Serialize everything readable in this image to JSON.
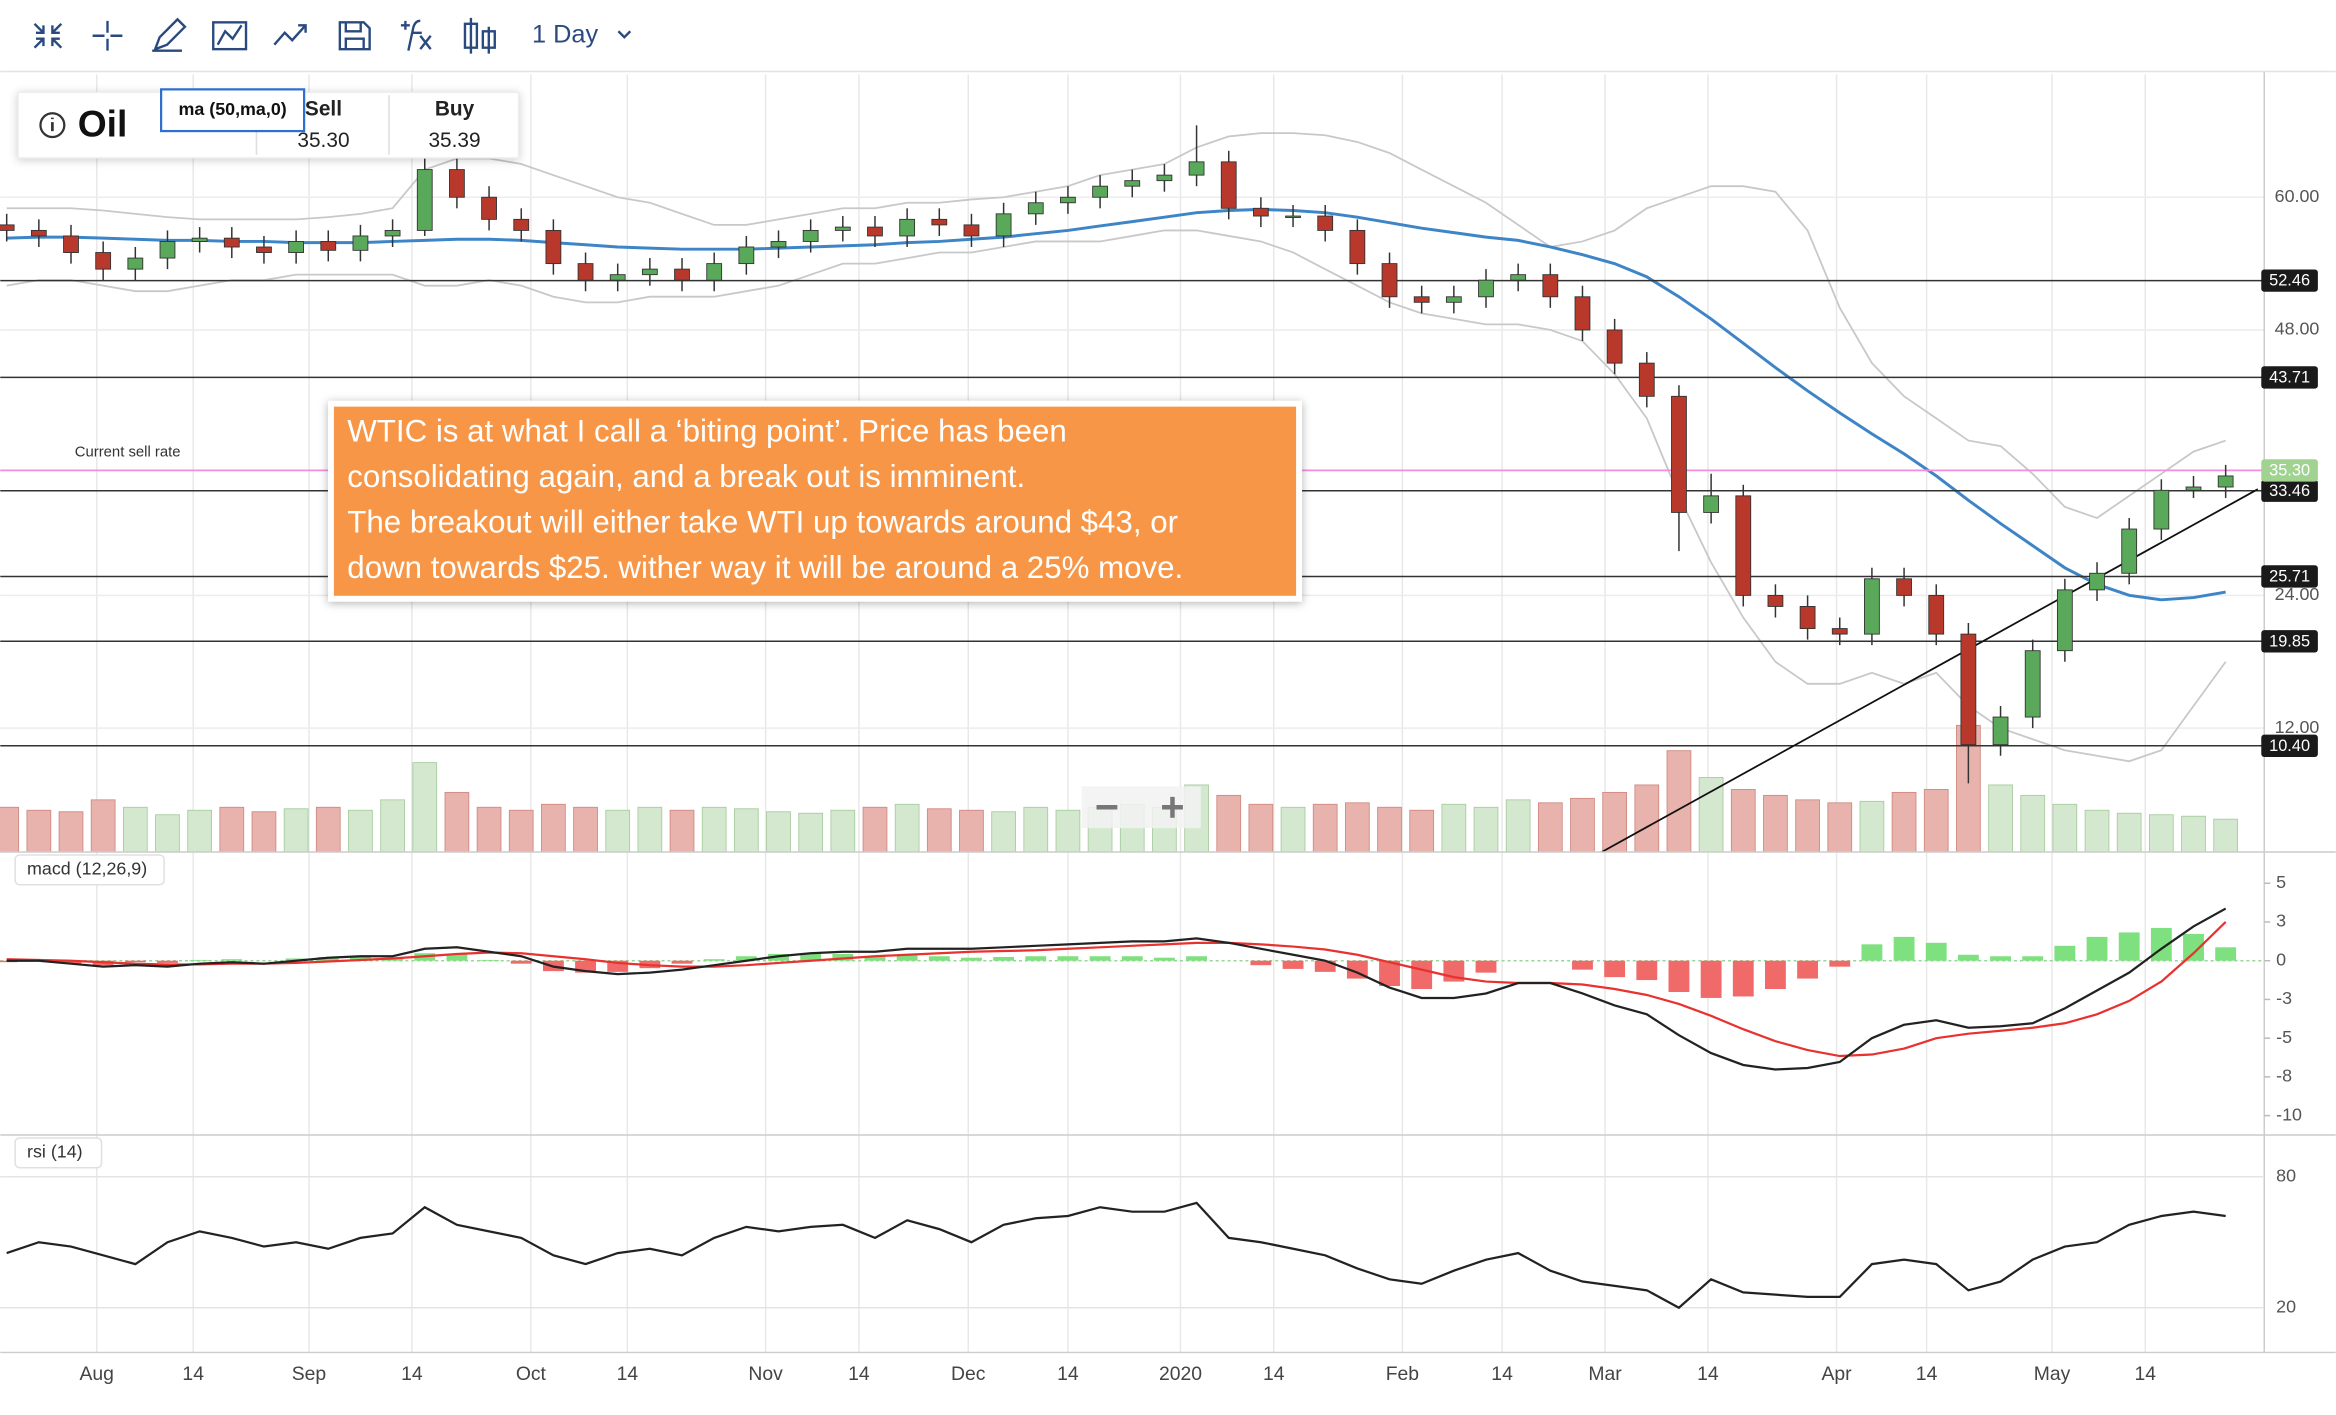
{
  "toolbar": {
    "interval": "1 Day"
  },
  "quote": {
    "name": "Oil",
    "sell_label": "Sell",
    "sell": "35.30",
    "buy_label": "Buy",
    "buy": "35.39"
  },
  "annotation": {
    "lines": [
      "WTIC is at what I call a ‘biting point’. Price has been",
      "consolidating again, and a break out is imminent.",
      "The breakout will either take WTI up towards around $43, or",
      "down towards $25. wither way it will be around a 25% move."
    ]
  },
  "chart_data": {
    "type": "candlestick",
    "xlim": [
      -0.2,
      70.2
    ],
    "xticks": [
      {
        "value": 2.8,
        "label": "Aug"
      },
      {
        "value": 5.8,
        "label": "14"
      },
      {
        "value": 9.4,
        "label": "Sep"
      },
      {
        "value": 12.6,
        "label": "14"
      },
      {
        "value": 16.3,
        "label": "Oct"
      },
      {
        "value": 19.3,
        "label": "14"
      },
      {
        "value": 23.6,
        "label": "Nov"
      },
      {
        "value": 26.5,
        "label": "14"
      },
      {
        "value": 29.9,
        "label": "Dec"
      },
      {
        "value": 33.0,
        "label": "14"
      },
      {
        "value": 36.5,
        "label": "2020"
      },
      {
        "value": 39.4,
        "label": "14"
      },
      {
        "value": 43.4,
        "label": "Feb"
      },
      {
        "value": 46.5,
        "label": "14"
      },
      {
        "value": 49.7,
        "label": "Mar"
      },
      {
        "value": 52.9,
        "label": "14"
      },
      {
        "value": 56.9,
        "label": "Apr"
      },
      {
        "value": 59.7,
        "label": "14"
      },
      {
        "value": 63.6,
        "label": "May"
      },
      {
        "value": 66.5,
        "label": "14"
      }
    ],
    "ylim": [
      0.8,
      71.1
    ],
    "yticks": [
      {
        "value": 60,
        "label": "60.00"
      },
      {
        "value": 48,
        "label": "48.00"
      },
      {
        "value": 24,
        "label": "24.00"
      },
      {
        "value": 12,
        "label": "12.00"
      }
    ],
    "grid": true,
    "up_color": "#5aa85a",
    "down_color": "#b8392b",
    "open": [
      57.5,
      57,
      56.5,
      55,
      53.5,
      54.5,
      56,
      56.3,
      55.5,
      55,
      56,
      55.2,
      56.5,
      57,
      62.5,
      60,
      58,
      57,
      54,
      52.5,
      53,
      53.5,
      52.5,
      54,
      55.5,
      56,
      57,
      57.3,
      56.5,
      58,
      57.5,
      56.5,
      58.5,
      59.5,
      60,
      61,
      61.5,
      62,
      63.2,
      59,
      58.3,
      58.3,
      57,
      54,
      51,
      50.5,
      51,
      52.5,
      53,
      51,
      48,
      45,
      42,
      31.5,
      33,
      24,
      23,
      21,
      20.5,
      25.5,
      24,
      20.5,
      10.5,
      13,
      19,
      24.5,
      26,
      30,
      33.5,
      33.8
    ],
    "high": [
      58.5,
      58,
      57.5,
      56,
      55.5,
      57,
      57.3,
      57.3,
      56.5,
      57,
      57,
      57.5,
      58,
      65,
      63.5,
      61,
      59,
      58,
      55,
      54,
      54.5,
      54.5,
      55,
      56.5,
      57,
      58,
      58.3,
      58.3,
      59,
      59,
      58.5,
      59.5,
      60.5,
      61,
      62,
      62.5,
      63,
      66.5,
      64.2,
      60,
      59.3,
      59.3,
      58,
      55,
      52,
      52,
      53.5,
      54,
      54,
      52,
      49,
      46,
      43,
      35,
      34,
      25,
      24,
      22,
      26.5,
      26.5,
      25,
      21.5,
      14,
      20,
      25.5,
      27,
      31,
      34.5,
      34.8,
      35.8
    ],
    "low": [
      56,
      55.5,
      54,
      52.5,
      52.5,
      53.5,
      55,
      54.5,
      54,
      54,
      54.2,
      54.2,
      55.5,
      56.5,
      59,
      57,
      56,
      53,
      51.5,
      51.5,
      52,
      51.5,
      51.5,
      53,
      54.5,
      55,
      56,
      55.5,
      55.5,
      56.5,
      55.5,
      55.5,
      57.5,
      58.5,
      59,
      60,
      60.5,
      61,
      58,
      57.3,
      57.3,
      56,
      53,
      50,
      49.5,
      49.5,
      50,
      51.5,
      50,
      47,
      44,
      41,
      28,
      30.5,
      23,
      22,
      20,
      19.5,
      19.5,
      23,
      19.5,
      7,
      9.5,
      12,
      18,
      23.5,
      25,
      29,
      32.8,
      32.8
    ],
    "close": [
      57,
      56.5,
      55,
      53.5,
      54.5,
      56,
      56.3,
      55.5,
      55,
      56,
      55.2,
      56.5,
      57,
      62.5,
      60,
      58,
      57,
      54,
      52.5,
      53,
      53.5,
      52.5,
      54,
      55.5,
      56,
      57,
      57.3,
      56.5,
      58,
      57.5,
      56.5,
      58.5,
      59.5,
      60,
      61,
      61.5,
      62,
      63.2,
      59,
      58.3,
      58.3,
      57,
      54,
      51,
      50.5,
      51,
      52.5,
      53,
      51,
      48,
      45,
      42,
      31.5,
      33,
      24,
      23,
      21,
      20.5,
      25.5,
      24,
      20.5,
      10.5,
      13,
      19,
      24.5,
      26,
      30,
      33.5,
      33.8,
      34.8
    ],
    "ma": {
      "name": "ma (50,ma,0)",
      "color": "#3d85c6",
      "values": [
        56.3,
        56.4,
        56.4,
        56.3,
        56.2,
        56.1,
        56.1,
        56.0,
        56.0,
        55.9,
        55.9,
        55.9,
        56.0,
        56.1,
        56.2,
        56.2,
        56.1,
        55.9,
        55.7,
        55.5,
        55.4,
        55.3,
        55.3,
        55.3,
        55.4,
        55.5,
        55.6,
        55.7,
        55.9,
        56.0,
        56.2,
        56.4,
        56.7,
        57.0,
        57.4,
        57.8,
        58.2,
        58.6,
        58.8,
        58.9,
        58.8,
        58.6,
        58.2,
        57.7,
        57.2,
        56.8,
        56.4,
        56.1,
        55.5,
        54.8,
        54.0,
        52.8,
        51.0,
        49.0,
        46.8,
        44.6,
        42.5,
        40.5,
        38.6,
        36.8,
        34.8,
        32.6,
        30.5,
        28.5,
        26.5,
        25.0,
        24.0,
        23.6,
        23.8,
        24.3
      ]
    },
    "bands": {
      "color": "#c8c8c8",
      "upper": [
        59,
        59,
        59,
        58.8,
        58.5,
        58.2,
        58,
        58,
        58,
        58,
        58.2,
        58.5,
        59,
        62.5,
        63.5,
        63.5,
        63,
        62,
        61,
        60,
        59.5,
        58.5,
        57.5,
        57.5,
        58,
        58.5,
        59,
        59,
        59.5,
        59.5,
        59.8,
        60,
        60.5,
        61,
        62,
        62.5,
        63,
        64.5,
        65.5,
        65.8,
        65.8,
        65.6,
        65,
        64,
        62.5,
        61,
        59.5,
        57.5,
        55.5,
        56,
        57,
        59,
        60,
        61,
        61,
        60.5,
        57,
        50,
        45,
        42,
        40,
        38,
        37.5,
        35,
        32,
        31,
        33,
        35,
        37,
        38
      ],
      "lower": [
        52,
        52.5,
        52.5,
        52,
        51.5,
        51.5,
        52,
        52.5,
        52.5,
        53,
        53,
        53,
        53,
        52,
        52,
        52.5,
        52,
        51,
        50.5,
        50.5,
        51,
        51,
        51,
        51.5,
        52,
        53,
        54,
        54,
        54.5,
        55,
        55,
        55.5,
        56,
        56,
        56,
        56.5,
        57,
        57,
        56.5,
        56,
        55,
        53.5,
        52,
        50.5,
        49.5,
        49,
        48.5,
        48.5,
        48,
        47,
        44,
        40,
        33,
        27,
        22,
        18,
        16,
        16,
        17,
        16,
        17,
        14,
        12,
        11,
        10,
        9.5,
        9,
        10,
        14,
        18
      ]
    },
    "levels": [
      52.46,
      43.71,
      33.46,
      25.71,
      19.85,
      {
        "value": 10.4,
        "label": "10.40"
      }
    ],
    "current_rate": {
      "name": "Current sell rate",
      "value": 35.3,
      "label": "35.30",
      "color": "#f28ee0"
    },
    "trendline": {
      "x": [
        49.6,
        70.0
      ],
      "y": [
        0.8,
        33.6
      ]
    },
    "volume": {
      "ylim": [
        0,
        100
      ],
      "values": [
        30,
        28,
        27,
        35,
        30,
        25,
        28,
        30,
        27,
        29,
        30,
        28,
        35,
        60,
        40,
        30,
        28,
        32,
        30,
        28,
        30,
        28,
        30,
        29,
        27,
        26,
        28,
        30,
        32,
        29,
        28,
        27,
        30,
        28,
        30,
        32,
        30,
        45,
        38,
        32,
        30,
        32,
        33,
        30,
        28,
        32,
        30,
        35,
        33,
        36,
        40,
        45,
        68,
        50,
        42,
        38,
        35,
        33,
        34,
        40,
        42,
        85,
        45,
        38,
        32,
        28,
        26,
        25,
        24,
        22
      ]
    },
    "macd": {
      "name": "macd (12,26,9)",
      "macd_color": "#222222",
      "signal_color": "#e8322f",
      "ylim": [
        -11.7,
        7.3
      ],
      "yticks": [
        {
          "value": 5.2,
          "label": "5"
        },
        {
          "value": 2.6,
          "label": "3"
        },
        0,
        {
          "value": -2.6,
          "label": "-3"
        },
        {
          "value": -5.2,
          "label": "-5"
        },
        {
          "value": -7.8,
          "label": "-8"
        },
        {
          "value": -10.4,
          "label": "-10"
        }
      ],
      "macd": [
        0,
        0,
        -0.2,
        -0.4,
        -0.3,
        -0.4,
        -0.2,
        -0.1,
        -0.2,
        0,
        0.2,
        0.3,
        0.3,
        0.8,
        0.9,
        0.6,
        0.3,
        -0.4,
        -0.7,
        -0.9,
        -0.8,
        -0.6,
        -0.3,
        0,
        0.3,
        0.5,
        0.6,
        0.6,
        0.8,
        0.8,
        0.8,
        0.9,
        1.0,
        1.1,
        1.2,
        1.3,
        1.3,
        1.5,
        1.2,
        0.8,
        0.4,
        0,
        -0.8,
        -1.8,
        -2.5,
        -2.5,
        -2.2,
        -1.5,
        -1.5,
        -2.2,
        -3.0,
        -3.6,
        -5.0,
        -6.2,
        -7.0,
        -7.3,
        -7.2,
        -6.8,
        -5.2,
        -4.3,
        -4.0,
        -4.5,
        -4.4,
        -4.2,
        -3.2,
        -2.0,
        -0.8,
        0.8,
        2.3,
        3.5
      ],
      "signal": [
        0.1,
        0.05,
        0,
        -0.1,
        -0.2,
        -0.25,
        -0.25,
        -0.2,
        -0.2,
        -0.15,
        -0.05,
        0.05,
        0.15,
        0.3,
        0.45,
        0.55,
        0.5,
        0.3,
        0.1,
        -0.15,
        -0.3,
        -0.4,
        -0.4,
        -0.3,
        -0.15,
        0,
        0.15,
        0.3,
        0.4,
        0.5,
        0.6,
        0.65,
        0.7,
        0.8,
        0.9,
        1.0,
        1.1,
        1.2,
        1.2,
        1.1,
        0.95,
        0.75,
        0.4,
        -0.1,
        -0.6,
        -1.1,
        -1.4,
        -1.5,
        -1.5,
        -1.6,
        -1.9,
        -2.3,
        -2.9,
        -3.7,
        -4.6,
        -5.4,
        -6.0,
        -6.4,
        -6.3,
        -5.9,
        -5.2,
        -4.9,
        -4.7,
        -4.5,
        -4.2,
        -3.6,
        -2.7,
        -1.4,
        0.5,
        2.6
      ],
      "histogram": [
        -0.1,
        -0.05,
        -0.2,
        -0.3,
        -0.1,
        -0.15,
        0.05,
        0.1,
        0,
        0.15,
        0.25,
        0.25,
        0.15,
        0.5,
        0.45,
        0.05,
        -0.2,
        -0.7,
        -0.8,
        -0.75,
        -0.5,
        -0.2,
        0.1,
        0.3,
        0.45,
        0.5,
        0.45,
        0.3,
        0.4,
        0.3,
        0.2,
        0.25,
        0.3,
        0.3,
        0.3,
        0.3,
        0.2,
        0.3,
        0,
        -0.3,
        -0.55,
        -0.75,
        -1.2,
        -1.7,
        -1.9,
        -1.4,
        -0.8,
        0,
        0,
        -0.6,
        -1.1,
        -1.3,
        -2.1,
        -2.5,
        -2.4,
        -1.9,
        -1.2,
        -0.4,
        1.1,
        1.6,
        1.2,
        0.4,
        0.3,
        0.3,
        1.0,
        1.6,
        1.9,
        2.2,
        1.8,
        0.9
      ]
    },
    "rsi": {
      "name": "rsi (14)",
      "color": "#222222",
      "ylim": [
        -0.45,
        99.1
      ],
      "yticks": [
        80,
        20
      ],
      "values": [
        45,
        50,
        48,
        44,
        40,
        50,
        55,
        52,
        48,
        50,
        47,
        52,
        54,
        66,
        58,
        55,
        52,
        44,
        40,
        45,
        47,
        44,
        52,
        57,
        55,
        57,
        58,
        52,
        60,
        56,
        50,
        58,
        61,
        62,
        66,
        64,
        64,
        68,
        52,
        50,
        47,
        44,
        38,
        33,
        31,
        37,
        42,
        45,
        37,
        32,
        30,
        28,
        20,
        33,
        27,
        26,
        25,
        25,
        40,
        42,
        40,
        28,
        32,
        42,
        48,
        50,
        58,
        62,
        64,
        62
      ]
    }
  }
}
